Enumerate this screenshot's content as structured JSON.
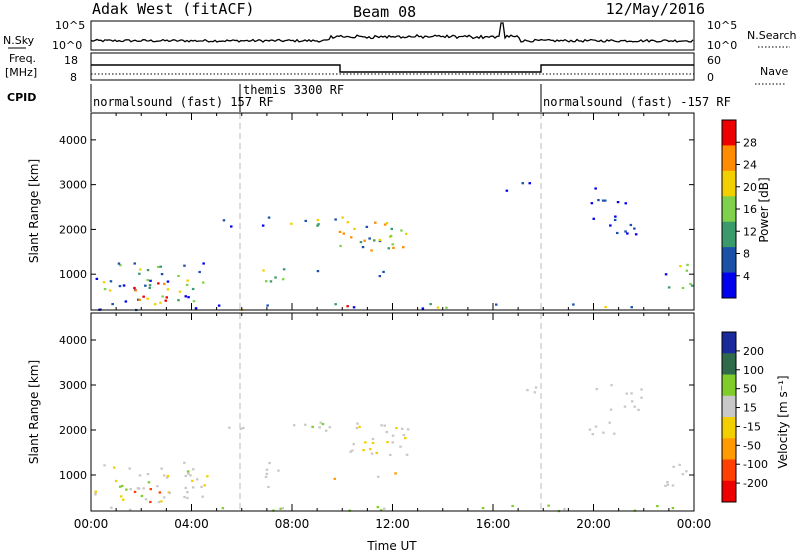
{
  "header": {
    "station": "Adak West (fitACF)",
    "beam": "Beam 08",
    "date": "12/May/2016"
  },
  "top_panels": {
    "nsky_label": "N.Sky",
    "nsearch_label": "N.Search",
    "noise_ticks": [
      "10^5",
      "10^0"
    ],
    "freq_label": "Freq.",
    "freq_unit": "[MHz]",
    "freq_ticks": [
      "18",
      "8"
    ],
    "nave_label": "Nave",
    "nave_ticks": [
      "60",
      "0"
    ],
    "cpid_label": "CPID",
    "cpid_segments": [
      {
        "label": "normalsound (fast) 157 RF"
      },
      {
        "label": "themis 3300 RF"
      },
      {
        "label": "normalsound (fast) -157 RF"
      }
    ]
  },
  "chart_data": [
    {
      "type": "heatmap",
      "name": "power",
      "xlabel": "",
      "ylabel": "Slant Range [km]",
      "ylim": [
        200,
        4600
      ],
      "yticks": [
        "4000",
        "3000",
        "2000",
        "1000"
      ],
      "colorbar_label": "Power [dB]",
      "colorbar_ticks": [
        "28",
        "24",
        "20",
        "16",
        "12",
        "8",
        "4"
      ],
      "colors": [
        "#0000ee",
        "#1a50a8",
        "#3a9a6a",
        "#7fd04a",
        "#f2d000",
        "#ff8c00",
        "#ee0000"
      ],
      "grid": false
    },
    {
      "type": "heatmap",
      "name": "velocity",
      "xlabel": "Time UT",
      "ylabel": "Slant Range [km]",
      "ylim": [
        200,
        4600
      ],
      "yticks": [
        "4000",
        "3000",
        "2000",
        "1000"
      ],
      "xticks": [
        "00:00",
        "04:00",
        "08:00",
        "12:00",
        "16:00",
        "20:00",
        "00:00"
      ],
      "colorbar_label": "Velocity [m s⁻¹]",
      "colorbar_ticks": [
        "200",
        "100",
        "50",
        "15",
        "-15",
        "-50",
        "-100",
        "-200"
      ],
      "colors": [
        "#1a2a9a",
        "#2f6a4a",
        "#7fcc2a",
        "#c8c8c8",
        "#f2d000",
        "#ff9a00",
        "#ff4000",
        "#ee0000"
      ],
      "grid": false
    }
  ]
}
